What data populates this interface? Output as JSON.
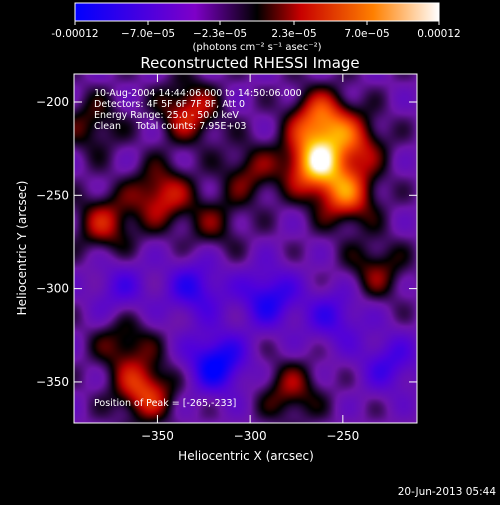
{
  "colorbar": {
    "ticks": [
      "-0.00012",
      "−7.0e−05",
      "−2.3e−05",
      "2.3e−05",
      "7.0e−05",
      "0.00012"
    ],
    "unit_label": "(photons cm⁻² s⁻¹ asec⁻²)",
    "range": [
      -0.00012,
      0.00012
    ]
  },
  "footer": {
    "timestamp": "20-Jun-2013 05:44"
  },
  "chart_data": {
    "type": "heatmap",
    "title": "Reconstructed RHESSI Image",
    "xlabel": "Heliocentric X (arcsec)",
    "ylabel": "Heliocentric Y (arcsec)",
    "xlim": [
      -395,
      -210
    ],
    "ylim": [
      -372,
      -185
    ],
    "x_ticks": [
      {
        "value": -350,
        "label": "−350"
      },
      {
        "value": -300,
        "label": "−300"
      },
      {
        "value": -250,
        "label": "−250"
      }
    ],
    "y_ticks": [
      {
        "value": -200,
        "label": "−200"
      },
      {
        "value": -250,
        "label": "−250"
      },
      {
        "value": -300,
        "label": "−300"
      },
      {
        "value": -350,
        "label": "−350"
      }
    ],
    "annotations": [
      "10-Aug-2004 14:44:06.000 to 14:50:06.000",
      "Detectors: 4F 5F 6F 7F 8F, Att 0",
      "Energy Range: 25.0 - 50.0 keV",
      "Clean     Total counts: 7.95E+03"
    ],
    "peak_label": "Position of Peak = [-265,-233]",
    "peak": {
      "x": -265,
      "y": -233
    },
    "sources": [
      {
        "x": -265,
        "y": -233,
        "value": 0.00012
      },
      {
        "x": -262,
        "y": -210,
        "value": 9.5e-05
      },
      {
        "x": -248,
        "y": -250,
        "value": 8.5e-05
      },
      {
        "x": -243,
        "y": -222,
        "value": 6e-05
      },
      {
        "x": -333,
        "y": -205,
        "value": 7e-05
      },
      {
        "x": -348,
        "y": -250,
        "value": 7e-05
      },
      {
        "x": -378,
        "y": -265,
        "value": 6e-05
      },
      {
        "x": -357,
        "y": -355,
        "value": 8e-05
      },
      {
        "x": -368,
        "y": -330,
        "value": 4.5e-05
      },
      {
        "x": -232,
        "y": -290,
        "value": 4.5e-05
      },
      {
        "x": -278,
        "y": -355,
        "value": 5e-05
      },
      {
        "x": -300,
        "y": -238,
        "value": 4.5e-05
      },
      {
        "x": -320,
        "y": -265,
        "value": 3.5e-05
      },
      {
        "x": -385,
        "y": -212,
        "value": 4e-05
      },
      {
        "x": -318,
        "y": -340,
        "value": -9e-05
      },
      {
        "x": -330,
        "y": -300,
        "value": -6e-05
      },
      {
        "x": -290,
        "y": -305,
        "value": -7e-05
      },
      {
        "x": -255,
        "y": -315,
        "value": -5e-05
      },
      {
        "x": -370,
        "y": -300,
        "value": -4e-05
      },
      {
        "x": -225,
        "y": -340,
        "value": -5e-05
      }
    ]
  }
}
